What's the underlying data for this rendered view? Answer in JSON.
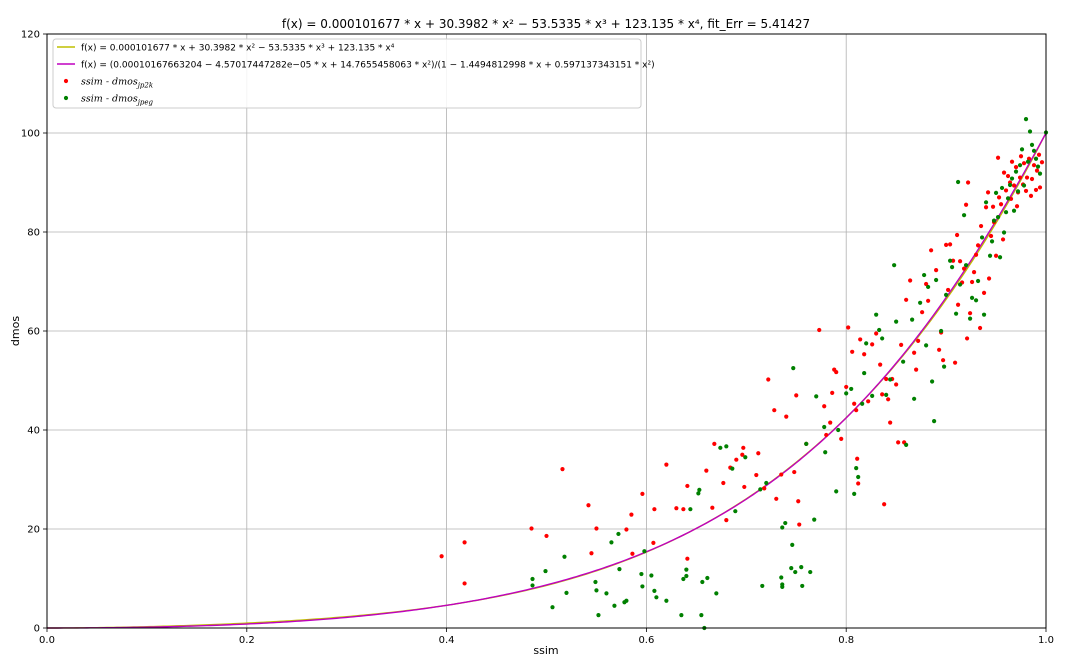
{
  "chart_data": {
    "type": "scatter",
    "title": "f(x) = 0.000101677 * x + 30.3982 * x² − 53.5335 * x³ + 123.135 * x⁴,    fit_Err = 5.41427",
    "xlabel": "ssim",
    "ylabel": "dmos",
    "xlim": [
      0,
      1
    ],
    "ylim": [
      0,
      120
    ],
    "xticks": [
      "0.0",
      "0.2",
      "0.4",
      "0.6",
      "0.8",
      "1.0"
    ],
    "xtick_values": [
      0,
      0.2,
      0.4,
      0.6,
      0.8,
      1.0
    ],
    "yticks": [
      "0",
      "20",
      "40",
      "60",
      "80",
      "100",
      "120"
    ],
    "ytick_values": [
      0,
      20,
      40,
      60,
      80,
      100,
      120
    ],
    "grid": true,
    "legend_position": "top-left",
    "curves": [
      {
        "name": "f(x) = 0.000101677 * x + 30.3982 * x² − 53.5335 * x³ + 123.135 * x⁴",
        "color": "#bfbf00",
        "kind": "poly",
        "coeffs": [
          0,
          0.000101677,
          30.3982,
          -53.5335,
          123.135
        ]
      },
      {
        "name": "f(x) = (0.00010167663204 − 4.57017447282e−05 * x + 14.7655458063 * x²)/(1 − 1.4494812998 * x + 0.597137343151 * x²)",
        "color": "#bf00bf",
        "kind": "rational",
        "num": [
          0.00010167663204,
          -4.57017447282e-05,
          14.7655458063
        ],
        "den": [
          1,
          -1.4494812998,
          0.597137343151
        ]
      }
    ],
    "series": [
      {
        "name": "ssim - dmos_jp2k",
        "label_main": "ssim - dmos",
        "label_sub": "jp2k",
        "color": "#ff0000",
        "points": [
          [
            0.395,
            14.5
          ],
          [
            0.418,
            17.3
          ],
          [
            0.418,
            9.0
          ],
          [
            0.485,
            20.1
          ],
          [
            0.5,
            18.6
          ],
          [
            0.516,
            32.1
          ],
          [
            0.542,
            24.8
          ],
          [
            0.545,
            15.1
          ],
          [
            0.55,
            20.1
          ],
          [
            0.58,
            19.9
          ],
          [
            0.585,
            22.9
          ],
          [
            0.586,
            15.0
          ],
          [
            0.596,
            27.1
          ],
          [
            0.607,
            17.2
          ],
          [
            0.608,
            24.0
          ],
          [
            0.62,
            33.0
          ],
          [
            0.63,
            24.2
          ],
          [
            0.637,
            24.0
          ],
          [
            0.641,
            28.7
          ],
          [
            0.641,
            14.0
          ],
          [
            0.66,
            31.8
          ],
          [
            0.666,
            24.3
          ],
          [
            0.668,
            37.2
          ],
          [
            0.677,
            29.3
          ],
          [
            0.68,
            21.8
          ],
          [
            0.684,
            32.4
          ],
          [
            0.69,
            34.0
          ],
          [
            0.696,
            35.0
          ],
          [
            0.697,
            36.4
          ],
          [
            0.698,
            28.5
          ],
          [
            0.71,
            30.9
          ],
          [
            0.712,
            35.3
          ],
          [
            0.718,
            28.2
          ],
          [
            0.722,
            50.2
          ],
          [
            0.728,
            44.0
          ],
          [
            0.73,
            26.1
          ],
          [
            0.735,
            31.0
          ],
          [
            0.74,
            42.7
          ],
          [
            0.748,
            31.5
          ],
          [
            0.75,
            47.0
          ],
          [
            0.752,
            25.6
          ],
          [
            0.753,
            20.9
          ],
          [
            0.76,
            37.2
          ],
          [
            0.773,
            60.2
          ],
          [
            0.778,
            44.8
          ],
          [
            0.78,
            39.0
          ],
          [
            0.784,
            41.5
          ],
          [
            0.786,
            47.5
          ],
          [
            0.788,
            52.2
          ],
          [
            0.79,
            51.7
          ],
          [
            0.795,
            38.2
          ],
          [
            0.8,
            48.7
          ],
          [
            0.802,
            60.7
          ],
          [
            0.806,
            55.8
          ],
          [
            0.808,
            45.3
          ],
          [
            0.81,
            44.0
          ],
          [
            0.811,
            34.2
          ],
          [
            0.812,
            29.2
          ],
          [
            0.814,
            58.3
          ],
          [
            0.818,
            55.3
          ],
          [
            0.822,
            45.8
          ],
          [
            0.826,
            57.3
          ],
          [
            0.83,
            59.5
          ],
          [
            0.834,
            53.2
          ],
          [
            0.836,
            47.2
          ],
          [
            0.838,
            25.0
          ],
          [
            0.84,
            50.3
          ],
          [
            0.842,
            46.2
          ],
          [
            0.844,
            41.5
          ],
          [
            0.846,
            50.3
          ],
          [
            0.85,
            49.2
          ],
          [
            0.852,
            37.5
          ],
          [
            0.855,
            57.2
          ],
          [
            0.858,
            37.5
          ],
          [
            0.86,
            66.3
          ],
          [
            0.864,
            70.2
          ],
          [
            0.868,
            55.6
          ],
          [
            0.87,
            52.2
          ],
          [
            0.872,
            58.0
          ],
          [
            0.876,
            63.8
          ],
          [
            0.88,
            69.5
          ],
          [
            0.882,
            66.1
          ],
          [
            0.885,
            76.3
          ],
          [
            0.89,
            72.3
          ],
          [
            0.893,
            56.2
          ],
          [
            0.895,
            59.7
          ],
          [
            0.897,
            54.1
          ],
          [
            0.9,
            77.4
          ],
          [
            0.902,
            68.3
          ],
          [
            0.904,
            77.5
          ],
          [
            0.907,
            74.2
          ],
          [
            0.909,
            53.6
          ],
          [
            0.911,
            79.4
          ],
          [
            0.912,
            65.3
          ],
          [
            0.914,
            74.1
          ],
          [
            0.916,
            69.8
          ],
          [
            0.918,
            72.6
          ],
          [
            0.92,
            85.5
          ],
          [
            0.921,
            58.5
          ],
          [
            0.922,
            90.0
          ],
          [
            0.924,
            63.6
          ],
          [
            0.926,
            69.9
          ],
          [
            0.928,
            71.9
          ],
          [
            0.93,
            75.4
          ],
          [
            0.932,
            77.3
          ],
          [
            0.934,
            60.6
          ],
          [
            0.935,
            81.2
          ],
          [
            0.938,
            67.7
          ],
          [
            0.94,
            85.0
          ],
          [
            0.942,
            88.0
          ],
          [
            0.943,
            70.6
          ],
          [
            0.945,
            79.2
          ],
          [
            0.947,
            85.1
          ],
          [
            0.948,
            82.0
          ],
          [
            0.95,
            75.2
          ],
          [
            0.952,
            95.0
          ],
          [
            0.953,
            87.0
          ],
          [
            0.955,
            85.6
          ],
          [
            0.957,
            78.5
          ],
          [
            0.958,
            92.0
          ],
          [
            0.96,
            88.4
          ],
          [
            0.962,
            91.3
          ],
          [
            0.964,
            90.0
          ],
          [
            0.965,
            86.7
          ],
          [
            0.966,
            94.2
          ],
          [
            0.968,
            89.4
          ],
          [
            0.97,
            93.1
          ],
          [
            0.971,
            85.2
          ],
          [
            0.972,
            88.0
          ],
          [
            0.974,
            91.0
          ],
          [
            0.975,
            95.3
          ],
          [
            0.977,
            89.6
          ],
          [
            0.978,
            93.9
          ],
          [
            0.98,
            88.3
          ],
          [
            0.981,
            91.0
          ],
          [
            0.983,
            94.8
          ],
          [
            0.985,
            87.3
          ],
          [
            0.986,
            90.7
          ],
          [
            0.988,
            93.5
          ],
          [
            0.99,
            88.5
          ],
          [
            0.991,
            92.4
          ],
          [
            0.993,
            95.6
          ],
          [
            0.994,
            89.0
          ],
          [
            0.996,
            94.1
          ]
        ]
      },
      {
        "name": "ssim - dmos_jpeg",
        "label_main": "ssim - dmos",
        "label_sub": "jpeg",
        "color": "#008000",
        "points": [
          [
            0.486,
            9.9
          ],
          [
            0.486,
            8.6
          ],
          [
            0.499,
            11.5
          ],
          [
            0.506,
            4.2
          ],
          [
            0.518,
            14.4
          ],
          [
            0.52,
            7.1
          ],
          [
            0.549,
            9.3
          ],
          [
            0.55,
            7.6
          ],
          [
            0.552,
            2.6
          ],
          [
            0.56,
            7.0
          ],
          [
            0.565,
            17.3
          ],
          [
            0.568,
            4.5
          ],
          [
            0.572,
            19.0
          ],
          [
            0.573,
            11.9
          ],
          [
            0.578,
            5.2
          ],
          [
            0.58,
            5.5
          ],
          [
            0.595,
            10.9
          ],
          [
            0.596,
            8.4
          ],
          [
            0.598,
            15.5
          ],
          [
            0.605,
            10.6
          ],
          [
            0.608,
            7.5
          ],
          [
            0.61,
            6.2
          ],
          [
            0.62,
            5.5
          ],
          [
            0.635,
            2.6
          ],
          [
            0.637,
            9.9
          ],
          [
            0.64,
            11.8
          ],
          [
            0.64,
            10.5
          ],
          [
            0.644,
            24.0
          ],
          [
            0.652,
            27.2
          ],
          [
            0.653,
            27.9
          ],
          [
            0.655,
            2.6
          ],
          [
            0.656,
            9.3
          ],
          [
            0.658,
            0.0
          ],
          [
            0.661,
            10.1
          ],
          [
            0.67,
            7.0
          ],
          [
            0.674,
            36.4
          ],
          [
            0.68,
            36.7
          ],
          [
            0.686,
            32.2
          ],
          [
            0.689,
            23.6
          ],
          [
            0.699,
            34.5
          ],
          [
            0.714,
            28.0
          ],
          [
            0.716,
            8.5
          ],
          [
            0.72,
            29.3
          ],
          [
            0.735,
            10.2
          ],
          [
            0.736,
            8.3
          ],
          [
            0.736,
            8.8
          ],
          [
            0.736,
            20.3
          ],
          [
            0.739,
            21.2
          ],
          [
            0.745,
            12.1
          ],
          [
            0.746,
            16.8
          ],
          [
            0.747,
            52.5
          ],
          [
            0.749,
            11.3
          ],
          [
            0.755,
            12.3
          ],
          [
            0.756,
            8.5
          ],
          [
            0.76,
            37.2
          ],
          [
            0.764,
            11.3
          ],
          [
            0.768,
            21.9
          ],
          [
            0.77,
            46.8
          ],
          [
            0.778,
            40.6
          ],
          [
            0.779,
            35.5
          ],
          [
            0.79,
            27.6
          ],
          [
            0.792,
            40.0
          ],
          [
            0.8,
            47.4
          ],
          [
            0.805,
            48.3
          ],
          [
            0.808,
            27.1
          ],
          [
            0.81,
            32.3
          ],
          [
            0.812,
            30.5
          ],
          [
            0.816,
            45.3
          ],
          [
            0.818,
            51.5
          ],
          [
            0.82,
            57.5
          ],
          [
            0.826,
            46.9
          ],
          [
            0.83,
            63.3
          ],
          [
            0.833,
            60.2
          ],
          [
            0.836,
            58.5
          ],
          [
            0.84,
            47.1
          ],
          [
            0.844,
            50.2
          ],
          [
            0.848,
            73.3
          ],
          [
            0.85,
            61.9
          ],
          [
            0.857,
            53.8
          ],
          [
            0.86,
            37.0
          ],
          [
            0.866,
            62.3
          ],
          [
            0.868,
            46.3
          ],
          [
            0.874,
            65.7
          ],
          [
            0.878,
            71.3
          ],
          [
            0.88,
            57.1
          ],
          [
            0.882,
            68.9
          ],
          [
            0.886,
            49.8
          ],
          [
            0.888,
            41.8
          ],
          [
            0.89,
            70.3
          ],
          [
            0.895,
            60.0
          ],
          [
            0.898,
            52.8
          ],
          [
            0.9,
            67.3
          ],
          [
            0.904,
            74.2
          ],
          [
            0.906,
            72.9
          ],
          [
            0.91,
            63.5
          ],
          [
            0.912,
            90.1
          ],
          [
            0.914,
            69.4
          ],
          [
            0.918,
            83.4
          ],
          [
            0.92,
            73.3
          ],
          [
            0.924,
            62.5
          ],
          [
            0.926,
            66.7
          ],
          [
            0.93,
            66.2
          ],
          [
            0.932,
            70.1
          ],
          [
            0.936,
            78.9
          ],
          [
            0.938,
            63.3
          ],
          [
            0.94,
            86.0
          ],
          [
            0.944,
            75.2
          ],
          [
            0.946,
            78.1
          ],
          [
            0.948,
            82.3
          ],
          [
            0.95,
            87.9
          ],
          [
            0.952,
            83.0
          ],
          [
            0.954,
            74.9
          ],
          [
            0.956,
            88.9
          ],
          [
            0.958,
            79.9
          ],
          [
            0.96,
            84.0
          ],
          [
            0.962,
            86.8
          ],
          [
            0.964,
            89.5
          ],
          [
            0.966,
            90.8
          ],
          [
            0.968,
            84.3
          ],
          [
            0.97,
            92.2
          ],
          [
            0.972,
            88.2
          ],
          [
            0.974,
            93.5
          ],
          [
            0.976,
            96.7
          ],
          [
            0.978,
            89.4
          ],
          [
            0.98,
            102.8
          ],
          [
            0.982,
            94.2
          ],
          [
            0.984,
            100.3
          ],
          [
            0.986,
            97.6
          ],
          [
            0.988,
            96.4
          ],
          [
            0.99,
            94.8
          ],
          [
            0.992,
            93.2
          ],
          [
            0.994,
            91.8
          ],
          [
            1.0,
            100.1
          ]
        ]
      }
    ]
  }
}
